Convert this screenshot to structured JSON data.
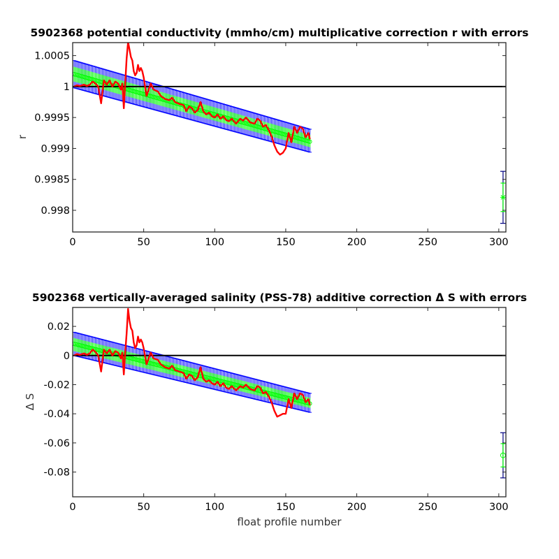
{
  "chart_data": [
    {
      "type": "line",
      "title": "5902368 potential conductivity (mmho/cm) multiplicative correction r with errors",
      "xlabel": "",
      "ylabel": "r",
      "xlim": [
        0,
        305
      ],
      "ylim": [
        0.99765,
        1.00071
      ],
      "x_ticks": [
        "0",
        "50",
        "100",
        "150",
        "200",
        "250",
        "300"
      ],
      "y_ticks": [
        "0.998",
        "0.9985",
        "0.999",
        "0.9995",
        "1",
        "1.0005"
      ],
      "grid": false,
      "colors": {
        "fit": "#0000ff",
        "fit_error_band": "#0000ff",
        "ensemble": "#00ff00",
        "raw": "#ff0000",
        "reference": "#000000",
        "mean_error_bar": "#000080"
      },
      "reference_line": 1,
      "series": [
        {
          "role": "fit",
          "x": [
            1,
            167
          ],
          "y": [
            1.0002,
            0.99911
          ]
        },
        {
          "role": "fit_upper",
          "x": [
            1,
            167
          ],
          "y": [
            1.00042,
            0.99931
          ]
        },
        {
          "role": "fit_lower",
          "x": [
            1,
            167
          ],
          "y": [
            0.99998,
            0.99894
          ]
        },
        {
          "role": "ensemble_upper",
          "x": [
            1,
            167
          ],
          "y": [
            1.00032,
            0.99922
          ]
        },
        {
          "role": "ensemble_lower",
          "x": [
            1,
            167
          ],
          "y": [
            1.00008,
            0.99902
          ]
        },
        {
          "role": "raw",
          "x": [
            1,
            3,
            5,
            8,
            10,
            12,
            14,
            16,
            18,
            20,
            22,
            24,
            26,
            28,
            30,
            32,
            34,
            35,
            36,
            37,
            38,
            39,
            40,
            41,
            42,
            43,
            44,
            45,
            46,
            47,
            48,
            49,
            50,
            52,
            55,
            57,
            60,
            62,
            65,
            68,
            70,
            72,
            75,
            78,
            80,
            82,
            84,
            86,
            88,
            90,
            92,
            94,
            96,
            98,
            100,
            102,
            104,
            106,
            108,
            110,
            112,
            115,
            118,
            120,
            122,
            125,
            128,
            130,
            132,
            134,
            136,
            138,
            140,
            142,
            144,
            146,
            148,
            150,
            152,
            154,
            156,
            158,
            160,
            162,
            164,
            166,
            167
          ],
          "y": [
            1.0,
            1.00002,
            1.00001,
            1.00003,
            1.00001,
            1.00003,
            1.00008,
            1.00005,
            1.0,
            0.99973,
            1.0001,
            1.00003,
            1.0001,
            1.0,
            1.00008,
            1.00005,
            0.99995,
            1.00005,
            0.99965,
            1.00005,
            1.00045,
            1.00072,
            1.0006,
            1.00048,
            1.00042,
            1.00025,
            1.00018,
            1.00022,
            1.00035,
            1.00025,
            1.0003,
            1.00025,
            1.00015,
            0.99985,
            1.00005,
            0.99995,
            0.99992,
            0.99985,
            0.9998,
            0.99978,
            0.99982,
            0.99975,
            0.99972,
            0.9997,
            0.9996,
            0.99968,
            0.99965,
            0.99958,
            0.99962,
            0.99975,
            0.9996,
            0.99955,
            0.99958,
            0.99952,
            0.9995,
            0.99955,
            0.99948,
            0.99952,
            0.99946,
            0.99944,
            0.99948,
            0.9994,
            0.99948,
            0.99945,
            0.9995,
            0.99942,
            0.9994,
            0.99948,
            0.99945,
            0.99935,
            0.99938,
            0.9993,
            0.9992,
            0.99905,
            0.99895,
            0.9989,
            0.99893,
            0.999,
            0.99925,
            0.9991,
            0.99935,
            0.99925,
            0.99935,
            0.99932,
            0.99918,
            0.99925,
            0.99915
          ]
        }
      ],
      "mean_point": {
        "x": 303,
        "y": 0.99821,
        "error_inner": 0.00023,
        "error_outer": 0.00042,
        "marker": "*"
      }
    },
    {
      "type": "line",
      "title": "5902368 vertically-averaged salinity (PSS-78) additive correction Δ S with errors",
      "xlabel": "float profile number",
      "ylabel": "Δ S",
      "xlim": [
        0,
        305
      ],
      "ylim": [
        -0.097,
        0.033
      ],
      "x_ticks": [
        "0",
        "50",
        "100",
        "150",
        "200",
        "250",
        "300"
      ],
      "y_ticks": [
        "-0.08",
        "-0.06",
        "-0.04",
        "-0.02",
        "0",
        "0.02"
      ],
      "grid": false,
      "colors": {
        "fit": "#0000ff",
        "fit_error_band": "#0000ff",
        "ensemble": "#00ff00",
        "raw": "#ff0000",
        "reference": "#000000",
        "mean_error_bar": "#000080"
      },
      "reference_line": 0,
      "series": [
        {
          "role": "fit",
          "x": [
            1,
            167
          ],
          "y": [
            0.008,
            -0.033
          ]
        },
        {
          "role": "fit_upper",
          "x": [
            1,
            167
          ],
          "y": [
            0.016,
            -0.026
          ]
        },
        {
          "role": "fit_lower",
          "x": [
            1,
            167
          ],
          "y": [
            0.0,
            -0.039
          ]
        },
        {
          "role": "ensemble_upper",
          "x": [
            1,
            167
          ],
          "y": [
            0.012,
            -0.029
          ]
        },
        {
          "role": "ensemble_lower",
          "x": [
            1,
            167
          ],
          "y": [
            0.003,
            -0.036
          ]
        },
        {
          "role": "raw",
          "x": [
            1,
            3,
            5,
            8,
            10,
            12,
            14,
            16,
            18,
            20,
            22,
            24,
            26,
            28,
            30,
            32,
            34,
            35,
            36,
            37,
            38,
            39,
            40,
            41,
            42,
            43,
            44,
            45,
            46,
            47,
            48,
            49,
            50,
            52,
            55,
            57,
            60,
            62,
            65,
            68,
            70,
            72,
            75,
            78,
            80,
            82,
            84,
            86,
            88,
            90,
            92,
            94,
            96,
            98,
            100,
            102,
            104,
            106,
            108,
            110,
            112,
            115,
            118,
            120,
            122,
            125,
            128,
            130,
            132,
            134,
            136,
            138,
            140,
            142,
            144,
            146,
            148,
            150,
            152,
            154,
            156,
            158,
            160,
            162,
            164,
            166,
            167
          ],
          "y": [
            0.0,
            0.001,
            0.0005,
            0.0015,
            0.0005,
            0.0015,
            0.004,
            0.0025,
            0.0,
            -0.011,
            0.004,
            0.0015,
            0.004,
            0.0,
            0.003,
            0.002,
            -0.002,
            0.002,
            -0.013,
            0.002,
            0.015,
            0.032,
            0.024,
            0.019,
            0.017,
            0.009,
            0.005,
            0.007,
            0.013,
            0.009,
            0.011,
            0.009,
            0.005,
            -0.006,
            0.002,
            -0.002,
            -0.003,
            -0.006,
            -0.008,
            -0.009,
            -0.007,
            -0.01,
            -0.011,
            -0.012,
            -0.016,
            -0.013,
            -0.014,
            -0.017,
            -0.015,
            -0.008,
            -0.016,
            -0.018,
            -0.017,
            -0.019,
            -0.02,
            -0.018,
            -0.021,
            -0.019,
            -0.022,
            -0.023,
            -0.021,
            -0.024,
            -0.021,
            -0.022,
            -0.02,
            -0.023,
            -0.024,
            -0.021,
            -0.022,
            -0.026,
            -0.025,
            -0.028,
            -0.032,
            -0.038,
            -0.042,
            -0.041,
            -0.04,
            -0.04,
            -0.03,
            -0.036,
            -0.026,
            -0.03,
            -0.026,
            -0.027,
            -0.032,
            -0.03,
            -0.034
          ]
        }
      ],
      "mean_point": {
        "x": 303,
        "y": -0.0685,
        "error_inner": 0.008,
        "error_outer": 0.0155,
        "marker": "o"
      }
    }
  ]
}
